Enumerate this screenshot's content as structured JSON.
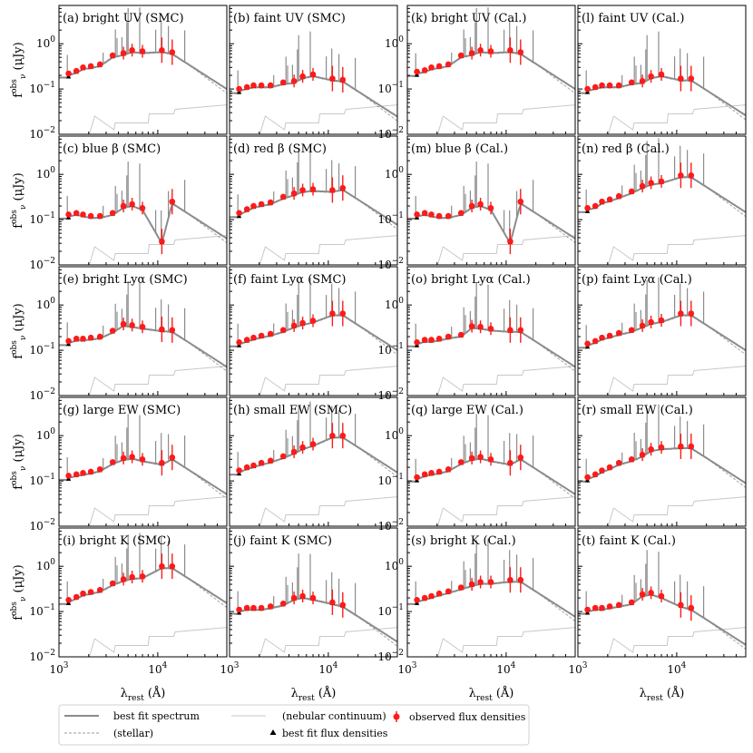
{
  "figure": {
    "xlabel": "λ",
    "xlabel_sub": "rest",
    "xlabel_unit": " (Å)",
    "ylabel": "f",
    "ylabel_sup": "obs",
    "ylabel_sub": "ν",
    "ylabel_unit": " (μJy)",
    "x_ticks": [
      "10",
      "10"
    ],
    "x_tick_exps": [
      "3",
      "4"
    ],
    "y_ticks": [
      "10",
      "10",
      "10"
    ],
    "y_tick_exps": [
      "0",
      "−1",
      "−2"
    ]
  },
  "legend": {
    "best_fit": "best fit spectrum",
    "stellar": "(stellar)",
    "nebular": "(nebular continuum)",
    "model_flux": "best fit flux densities",
    "observed": "observed flux densities"
  },
  "colors": {
    "observed": "#ff1a1a",
    "model": "#000000",
    "spectrum": "#8c8c8c",
    "nebular": "#c8c8c8",
    "stellar": "#9a9a9a"
  },
  "chart_data": {
    "type": "scatter",
    "xscale": "log",
    "yscale": "log",
    "xlim": [
      1000,
      50000
    ],
    "ylim": [
      0.01,
      7
    ],
    "panels": [
      {
        "label": "(a) bright UV (SMC)",
        "sample": "bright UV",
        "dust": "SMC",
        "obs": [
          [
            1250,
            0.22
          ],
          [
            1500,
            0.25
          ],
          [
            1750,
            0.3
          ],
          [
            2100,
            0.32
          ],
          [
            2600,
            0.35
          ],
          [
            3500,
            0.55
          ],
          [
            4500,
            0.62
          ],
          [
            5500,
            0.72
          ],
          [
            7000,
            0.68
          ],
          [
            11000,
            0.72
          ],
          [
            14000,
            0.65
          ]
        ]
      },
      {
        "label": "(b) faint UV (SMC)",
        "sample": "faint UV",
        "dust": "SMC",
        "obs": [
          [
            1250,
            0.1
          ],
          [
            1500,
            0.11
          ],
          [
            1750,
            0.12
          ],
          [
            2100,
            0.12
          ],
          [
            2600,
            0.12
          ],
          [
            3500,
            0.14
          ],
          [
            4500,
            0.15
          ],
          [
            5500,
            0.19
          ],
          [
            7000,
            0.21
          ],
          [
            11000,
            0.17
          ],
          [
            14000,
            0.16
          ]
        ]
      },
      {
        "label": "(k) bright UV (Cal.)",
        "sample": "bright UV",
        "dust": "Cal.",
        "obs": [
          [
            1250,
            0.24
          ],
          [
            1500,
            0.26
          ],
          [
            1750,
            0.3
          ],
          [
            2100,
            0.32
          ],
          [
            2600,
            0.35
          ],
          [
            3500,
            0.55
          ],
          [
            4500,
            0.62
          ],
          [
            5500,
            0.72
          ],
          [
            7000,
            0.68
          ],
          [
            11000,
            0.72
          ],
          [
            14000,
            0.65
          ]
        ]
      },
      {
        "label": "(l) faint UV (Cal.)",
        "sample": "faint UV",
        "dust": "Cal.",
        "obs": [
          [
            1250,
            0.1
          ],
          [
            1500,
            0.11
          ],
          [
            1750,
            0.12
          ],
          [
            2100,
            0.12
          ],
          [
            2600,
            0.12
          ],
          [
            3500,
            0.14
          ],
          [
            4500,
            0.15
          ],
          [
            5500,
            0.19
          ],
          [
            7000,
            0.21
          ],
          [
            11000,
            0.17
          ],
          [
            14000,
            0.17
          ]
        ]
      },
      {
        "label": "(c) blue β (SMC)",
        "sample": "blue β",
        "dust": "SMC",
        "obs": [
          [
            1250,
            0.13
          ],
          [
            1500,
            0.14
          ],
          [
            1750,
            0.13
          ],
          [
            2100,
            0.12
          ],
          [
            2600,
            0.12
          ],
          [
            3500,
            0.14
          ],
          [
            4500,
            0.2
          ],
          [
            5500,
            0.22
          ],
          [
            7000,
            0.18
          ],
          [
            11000,
            0.033
          ],
          [
            14000,
            0.25
          ]
        ]
      },
      {
        "label": "(d) red β (SMC)",
        "sample": "red β",
        "dust": "SMC",
        "obs": [
          [
            1250,
            0.14
          ],
          [
            1500,
            0.17
          ],
          [
            1750,
            0.2
          ],
          [
            2100,
            0.22
          ],
          [
            2600,
            0.24
          ],
          [
            3500,
            0.32
          ],
          [
            4500,
            0.38
          ],
          [
            5500,
            0.45
          ],
          [
            7000,
            0.47
          ],
          [
            11000,
            0.45
          ],
          [
            14000,
            0.5
          ]
        ]
      },
      {
        "label": "(m) blue β (Cal.)",
        "sample": "blue β",
        "dust": "Cal.",
        "obs": [
          [
            1250,
            0.13
          ],
          [
            1500,
            0.14
          ],
          [
            1750,
            0.13
          ],
          [
            2100,
            0.12
          ],
          [
            2600,
            0.12
          ],
          [
            3500,
            0.14
          ],
          [
            4500,
            0.2
          ],
          [
            5500,
            0.22
          ],
          [
            7000,
            0.18
          ],
          [
            11000,
            0.033
          ],
          [
            14000,
            0.25
          ]
        ]
      },
      {
        "label": "(n) red β (Cal.)",
        "sample": "red β",
        "dust": "Cal.",
        "obs": [
          [
            1250,
            0.18
          ],
          [
            1500,
            0.2
          ],
          [
            1750,
            0.25
          ],
          [
            2100,
            0.28
          ],
          [
            2600,
            0.33
          ],
          [
            3500,
            0.42
          ],
          [
            4500,
            0.55
          ],
          [
            5500,
            0.65
          ],
          [
            7000,
            0.7
          ],
          [
            11000,
            0.95
          ],
          [
            14000,
            0.95
          ]
        ]
      },
      {
        "label": "(e) bright Lyα (SMC)",
        "sample": "bright Lyα",
        "dust": "SMC",
        "obs": [
          [
            1250,
            0.16
          ],
          [
            1500,
            0.18
          ],
          [
            1750,
            0.18
          ],
          [
            2100,
            0.19
          ],
          [
            2600,
            0.2
          ],
          [
            3500,
            0.27
          ],
          [
            4500,
            0.38
          ],
          [
            5500,
            0.36
          ],
          [
            7000,
            0.33
          ],
          [
            11000,
            0.29
          ],
          [
            14000,
            0.28
          ]
        ]
      },
      {
        "label": "(f) faint Lyα (SMC)",
        "sample": "faint Lyα",
        "dust": "SMC",
        "obs": [
          [
            1250,
            0.15
          ],
          [
            1500,
            0.17
          ],
          [
            1750,
            0.19
          ],
          [
            2100,
            0.21
          ],
          [
            2600,
            0.23
          ],
          [
            3500,
            0.28
          ],
          [
            4500,
            0.35
          ],
          [
            5500,
            0.4
          ],
          [
            7000,
            0.45
          ],
          [
            11000,
            0.65
          ],
          [
            14000,
            0.65
          ]
        ]
      },
      {
        "label": "(o) bright Lyα (Cal.)",
        "sample": "bright Lyα",
        "dust": "Cal.",
        "obs": [
          [
            1250,
            0.15
          ],
          [
            1500,
            0.17
          ],
          [
            1750,
            0.17
          ],
          [
            2100,
            0.18
          ],
          [
            2600,
            0.2
          ],
          [
            3500,
            0.22
          ],
          [
            4500,
            0.34
          ],
          [
            5500,
            0.33
          ],
          [
            7000,
            0.3
          ],
          [
            11000,
            0.28
          ],
          [
            14000,
            0.28
          ]
        ]
      },
      {
        "label": "(p) faint Lyα (Cal.)",
        "sample": "faint Lyα",
        "dust": "Cal.",
        "obs": [
          [
            1250,
            0.14
          ],
          [
            1500,
            0.16
          ],
          [
            1750,
            0.19
          ],
          [
            2100,
            0.21
          ],
          [
            2600,
            0.24
          ],
          [
            3500,
            0.28
          ],
          [
            4500,
            0.35
          ],
          [
            5500,
            0.42
          ],
          [
            7000,
            0.46
          ],
          [
            11000,
            0.65
          ],
          [
            14000,
            0.65
          ]
        ]
      },
      {
        "label": "(g) large EW (SMC)",
        "sample": "large EW",
        "dust": "SMC",
        "obs": [
          [
            1250,
            0.13
          ],
          [
            1500,
            0.14
          ],
          [
            1750,
            0.15
          ],
          [
            2100,
            0.16
          ],
          [
            2600,
            0.18
          ],
          [
            3500,
            0.26
          ],
          [
            4500,
            0.32
          ],
          [
            5500,
            0.34
          ],
          [
            7000,
            0.3
          ],
          [
            11000,
            0.25
          ],
          [
            14000,
            0.33
          ]
        ]
      },
      {
        "label": "(h) small EW (SMC)",
        "sample": "small EW",
        "dust": "SMC",
        "obs": [
          [
            1250,
            0.17
          ],
          [
            1500,
            0.2
          ],
          [
            1750,
            0.22
          ],
          [
            2100,
            0.25
          ],
          [
            2600,
            0.28
          ],
          [
            3500,
            0.35
          ],
          [
            4500,
            0.44
          ],
          [
            5500,
            0.55
          ],
          [
            7000,
            0.65
          ],
          [
            11000,
            1.0
          ],
          [
            14000,
            1.0
          ]
        ]
      },
      {
        "label": "(q) large EW (Cal.)",
        "sample": "large EW",
        "dust": "Cal.",
        "obs": [
          [
            1250,
            0.12
          ],
          [
            1500,
            0.14
          ],
          [
            1750,
            0.15
          ],
          [
            2100,
            0.16
          ],
          [
            2600,
            0.18
          ],
          [
            3500,
            0.26
          ],
          [
            4500,
            0.32
          ],
          [
            5500,
            0.34
          ],
          [
            7000,
            0.3
          ],
          [
            11000,
            0.25
          ],
          [
            14000,
            0.33
          ]
        ]
      },
      {
        "label": "(r) small EW (Cal.)",
        "sample": "small EW",
        "dust": "Cal.",
        "obs": [
          [
            1250,
            0.12
          ],
          [
            1500,
            0.14
          ],
          [
            1750,
            0.17
          ],
          [
            2100,
            0.2
          ],
          [
            2600,
            0.25
          ],
          [
            3500,
            0.3
          ],
          [
            4500,
            0.38
          ],
          [
            5500,
            0.5
          ],
          [
            7000,
            0.55
          ],
          [
            11000,
            0.58
          ],
          [
            14000,
            0.58
          ]
        ]
      },
      {
        "label": "(i) bright K (SMC)",
        "sample": "bright K",
        "dust": "SMC",
        "obs": [
          [
            1250,
            0.18
          ],
          [
            1500,
            0.21
          ],
          [
            1750,
            0.25
          ],
          [
            2100,
            0.27
          ],
          [
            2600,
            0.3
          ],
          [
            3500,
            0.42
          ],
          [
            4500,
            0.52
          ],
          [
            5500,
            0.58
          ],
          [
            7000,
            0.6
          ],
          [
            11000,
            1.0
          ],
          [
            14000,
            1.0
          ]
        ]
      },
      {
        "label": "(j) faint K (SMC)",
        "sample": "faint K",
        "dust": "SMC",
        "obs": [
          [
            1250,
            0.11
          ],
          [
            1500,
            0.12
          ],
          [
            1750,
            0.12
          ],
          [
            2100,
            0.12
          ],
          [
            2600,
            0.13
          ],
          [
            3500,
            0.15
          ],
          [
            4500,
            0.2
          ],
          [
            5500,
            0.22
          ],
          [
            7000,
            0.2
          ],
          [
            11000,
            0.16
          ],
          [
            14000,
            0.14
          ]
        ]
      },
      {
        "label": "(s) bright K (Cal.)",
        "sample": "bright K",
        "dust": "Cal.",
        "obs": [
          [
            1250,
            0.18
          ],
          [
            1500,
            0.2
          ],
          [
            1750,
            0.22
          ],
          [
            2100,
            0.25
          ],
          [
            2600,
            0.28
          ],
          [
            3500,
            0.34
          ],
          [
            4500,
            0.4
          ],
          [
            5500,
            0.45
          ],
          [
            7000,
            0.45
          ],
          [
            11000,
            0.5
          ],
          [
            14000,
            0.5
          ]
        ]
      },
      {
        "label": "(t) faint K (Cal.)",
        "sample": "faint K",
        "dust": "Cal.",
        "obs": [
          [
            1250,
            0.11
          ],
          [
            1500,
            0.12
          ],
          [
            1750,
            0.12
          ],
          [
            2100,
            0.13
          ],
          [
            2600,
            0.14
          ],
          [
            3500,
            0.16
          ],
          [
            4500,
            0.24
          ],
          [
            5500,
            0.26
          ],
          [
            7000,
            0.22
          ],
          [
            11000,
            0.14
          ],
          [
            14000,
            0.12
          ]
        ]
      }
    ]
  }
}
